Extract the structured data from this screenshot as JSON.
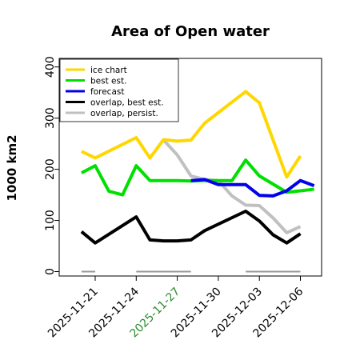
{
  "chart_data": {
    "type": "line",
    "title": "Area of Open water",
    "ylabel": "1000 km2",
    "xlabel": "",
    "ylim": [
      0,
      400
    ],
    "y_ticks": [
      0,
      100,
      200,
      300,
      400
    ],
    "x_ticks": [
      {
        "label": "2025-11-21",
        "date": "2025-11-21",
        "color": "#000000"
      },
      {
        "label": "2025-11-24",
        "date": "2025-11-24",
        "color": "#000000"
      },
      {
        "label": "2025-11-27",
        "date": "2025-11-27",
        "color": "#2e8b2e"
      },
      {
        "label": "2025-11-30",
        "date": "2025-11-30",
        "color": "#000000"
      },
      {
        "label": "2025-12-03",
        "date": "2025-12-03",
        "color": "#000000"
      },
      {
        "label": "2025-12-06",
        "date": "2025-12-06",
        "color": "#000000"
      }
    ],
    "x_range": [
      "2025-11-17",
      "2025-12-08"
    ],
    "legend_position": "top-left",
    "series": [
      {
        "name": "ice chart",
        "color": "#ffd700",
        "points": [
          {
            "x": "2025-11-20",
            "y": 235
          },
          {
            "x": "2025-11-21",
            "y": 222
          },
          {
            "x": "2025-11-24",
            "y": 262
          },
          {
            "x": "2025-11-25",
            "y": 222
          },
          {
            "x": "2025-11-26",
            "y": 258
          },
          {
            "x": "2025-11-27",
            "y": 255
          },
          {
            "x": "2025-11-28",
            "y": 257
          },
          {
            "x": "2025-11-29",
            "y": 290
          },
          {
            "x": "2025-12-02",
            "y": 352
          },
          {
            "x": "2025-12-03",
            "y": 330
          },
          {
            "x": "2025-12-05",
            "y": 185
          },
          {
            "x": "2025-12-06",
            "y": 226
          }
        ]
      },
      {
        "name": "best est.",
        "color": "#00e000",
        "points": [
          {
            "x": "2025-11-20",
            "y": 193
          },
          {
            "x": "2025-11-21",
            "y": 207
          },
          {
            "x": "2025-11-22",
            "y": 157
          },
          {
            "x": "2025-11-23",
            "y": 150
          },
          {
            "x": "2025-11-24",
            "y": 207
          },
          {
            "x": "2025-11-25",
            "y": 178
          },
          {
            "x": "2025-11-27",
            "y": 178
          },
          {
            "x": "2025-11-28",
            "y": 177
          },
          {
            "x": "2025-11-29",
            "y": 178
          },
          {
            "x": "2025-11-30",
            "y": 178
          },
          {
            "x": "2025-12-01",
            "y": 178
          },
          {
            "x": "2025-12-02",
            "y": 218
          },
          {
            "x": "2025-12-03",
            "y": 187
          },
          {
            "x": "2025-12-05",
            "y": 155
          },
          {
            "x": "2025-12-06",
            "y": 158
          },
          {
            "x": "2025-12-07",
            "y": 161
          }
        ]
      },
      {
        "name": "forecast",
        "color": "#0000ee",
        "points": [
          {
            "x": "2025-11-28",
            "y": 178
          },
          {
            "x": "2025-11-29",
            "y": 180
          },
          {
            "x": "2025-11-30",
            "y": 170
          },
          {
            "x": "2025-12-01",
            "y": 170
          },
          {
            "x": "2025-12-02",
            "y": 170
          },
          {
            "x": "2025-12-03",
            "y": 149
          },
          {
            "x": "2025-12-04",
            "y": 148
          },
          {
            "x": "2025-12-05",
            "y": 158
          },
          {
            "x": "2025-12-06",
            "y": 178
          },
          {
            "x": "2025-12-07",
            "y": 168
          }
        ]
      },
      {
        "name": "overlap, best est.",
        "color": "#000000",
        "points": [
          {
            "x": "2025-11-20",
            "y": 78
          },
          {
            "x": "2025-11-21",
            "y": 56
          },
          {
            "x": "2025-11-24",
            "y": 107
          },
          {
            "x": "2025-11-25",
            "y": 62
          },
          {
            "x": "2025-11-26",
            "y": 60
          },
          {
            "x": "2025-11-27",
            "y": 60
          },
          {
            "x": "2025-11-28",
            "y": 62
          },
          {
            "x": "2025-11-29",
            "y": 80
          },
          {
            "x": "2025-12-02",
            "y": 118
          },
          {
            "x": "2025-12-03",
            "y": 99
          },
          {
            "x": "2025-12-04",
            "y": 72
          },
          {
            "x": "2025-12-05",
            "y": 56
          },
          {
            "x": "2025-12-06",
            "y": 74
          }
        ]
      },
      {
        "name": "overlap, persist.",
        "color": "#c0c0c0",
        "points": [
          {
            "x": "2025-11-26",
            "y": 257
          },
          {
            "x": "2025-11-27",
            "y": 228
          },
          {
            "x": "2025-11-28",
            "y": 187
          },
          {
            "x": "2025-11-29",
            "y": 180
          },
          {
            "x": "2025-11-30",
            "y": 178
          },
          {
            "x": "2025-12-01",
            "y": 148
          },
          {
            "x": "2025-12-02",
            "y": 130
          },
          {
            "x": "2025-12-03",
            "y": 129
          },
          {
            "x": "2025-12-04",
            "y": 105
          },
          {
            "x": "2025-12-05",
            "y": 76
          },
          {
            "x": "2025-12-06",
            "y": 88
          }
        ]
      }
    ],
    "connectors": [
      {
        "color": "#ffd700",
        "from": {
          "x": "2025-11-21",
          "y": 222
        },
        "to": {
          "x": "2025-11-24",
          "y": 262
        }
      },
      {
        "color": "#ffd700",
        "from": {
          "x": "2025-11-29",
          "y": 290
        },
        "to": {
          "x": "2025-12-02",
          "y": 352
        }
      },
      {
        "color": "#000000",
        "from": {
          "x": "2025-11-21",
          "y": 56
        },
        "to": {
          "x": "2025-11-24",
          "y": 107
        }
      },
      {
        "color": "#000000",
        "from": {
          "x": "2025-11-29",
          "y": 80
        },
        "to": {
          "x": "2025-12-02",
          "y": 118
        }
      }
    ],
    "gap_markers": [
      {
        "color": "#999999",
        "from": "2025-11-20",
        "to": "2025-11-21",
        "y": 0
      },
      {
        "color": "#999999",
        "from": "2025-11-24",
        "to": "2025-11-28",
        "y": 0
      },
      {
        "color": "#999999",
        "from": "2025-12-02",
        "to": "2025-12-06",
        "y": 0
      }
    ]
  }
}
